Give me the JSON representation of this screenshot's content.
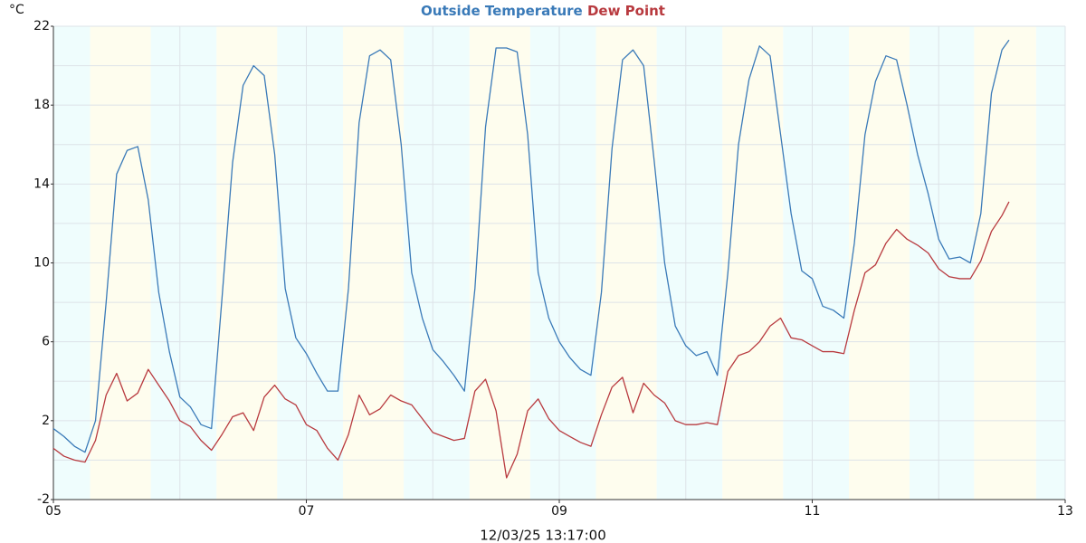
{
  "chart_data": {
    "type": "line",
    "y_unit": "°C",
    "footer": "12/03/25 13:17:00",
    "x": [
      5,
      5.083,
      5.167,
      5.25,
      5.333,
      5.417,
      5.5,
      5.583,
      5.667,
      5.75,
      5.833,
      5.917,
      6,
      6.083,
      6.167,
      6.25,
      6.333,
      6.417,
      6.5,
      6.583,
      6.667,
      6.75,
      6.833,
      6.917,
      7,
      7.083,
      7.167,
      7.25,
      7.333,
      7.417,
      7.5,
      7.583,
      7.667,
      7.75,
      7.833,
      7.917,
      8,
      8.083,
      8.167,
      8.25,
      8.333,
      8.417,
      8.5,
      8.583,
      8.667,
      8.75,
      8.833,
      8.917,
      9,
      9.083,
      9.167,
      9.25,
      9.333,
      9.417,
      9.5,
      9.583,
      9.667,
      9.75,
      9.833,
      9.917,
      10,
      10.083,
      10.167,
      10.25,
      10.333,
      10.417,
      10.5,
      10.583,
      10.667,
      10.75,
      10.833,
      10.917,
      11,
      11.083,
      11.167,
      11.25,
      11.333,
      11.417,
      11.5,
      11.583,
      11.667,
      11.75,
      11.833,
      11.917,
      12,
      12.083,
      12.167,
      12.25,
      12.333,
      12.417,
      12.5,
      12.556
    ],
    "series": [
      {
        "name": "Outside Temperature",
        "color": "#3a7ab8",
        "values": [
          1.6,
          1.2,
          0.7,
          0.4,
          2,
          8,
          14.5,
          15.7,
          15.9,
          13.2,
          8.5,
          5.5,
          3.2,
          2.7,
          1.8,
          1.6,
          8.2,
          15.1,
          19,
          20,
          19.5,
          15.5,
          8.7,
          6.2,
          5.4,
          4.4,
          3.5,
          3.5,
          8.7,
          17.1,
          20.5,
          20.8,
          20.3,
          16,
          9.5,
          7.2,
          5.6,
          5.0,
          4.3,
          3.5,
          8.7,
          16.9,
          20.9,
          20.9,
          20.7,
          16.5,
          9.5,
          7.2,
          6,
          5.2,
          4.6,
          4.3,
          8.5,
          15.8,
          20.3,
          20.8,
          20,
          15.2,
          10,
          6.8,
          5.8,
          5.3,
          5.5,
          4.3,
          9.5,
          16,
          19.3,
          21,
          20.5,
          16.5,
          12.5,
          9.6,
          9.2,
          7.8,
          7.6,
          7.2,
          11,
          16.5,
          19.2,
          20.5,
          20.3,
          18,
          15.5,
          13.5,
          11.2,
          10.2,
          10.3,
          10,
          12.5,
          18.6,
          20.8,
          21.3
        ]
      },
      {
        "name": "Dew Point",
        "color": "#b83a3f",
        "values": [
          0.6,
          0.2,
          0,
          -0.1,
          1.0,
          3.3,
          4.4,
          3.0,
          3.4,
          4.6,
          3.8,
          3.0,
          2.0,
          1.7,
          1.0,
          0.5,
          1.3,
          2.2,
          2.4,
          1.5,
          3.2,
          3.8,
          3.1,
          2.8,
          1.8,
          1.5,
          0.6,
          0,
          1.3,
          3.3,
          2.3,
          2.6,
          3.3,
          3.0,
          2.8,
          2.1,
          1.4,
          1.2,
          1.0,
          1.1,
          3.5,
          4.1,
          2.5,
          -0.9,
          0.3,
          2.5,
          3.1,
          2.1,
          1.5,
          1.2,
          0.9,
          0.7,
          2.3,
          3.7,
          4.2,
          2.4,
          3.9,
          3.3,
          2.9,
          2.0,
          1.8,
          1.8,
          1.9,
          1.8,
          4.5,
          5.3,
          5.5,
          6.0,
          6.8,
          7.2,
          6.2,
          6.1,
          5.8,
          5.5,
          5.5,
          5.4,
          7.6,
          9.5,
          9.9,
          11.0,
          11.7,
          11.2,
          10.9,
          10.5,
          9.7,
          9.3,
          9.2,
          9.2,
          10.1,
          11.6,
          12.4,
          13.1
        ]
      }
    ],
    "xlim": [
      5,
      13
    ],
    "xticks": [
      {
        "value": 5,
        "label": "05"
      },
      {
        "value": 7,
        "label": "07"
      },
      {
        "value": 9,
        "label": "09"
      },
      {
        "value": 11,
        "label": "11"
      },
      {
        "value": 13,
        "label": "13"
      }
    ],
    "x_grid": [
      5,
      6,
      7,
      8,
      9,
      10,
      11,
      12,
      13
    ],
    "ylim": [
      -2,
      22
    ],
    "yticks": [
      -2,
      2,
      6,
      10,
      14,
      18,
      22
    ],
    "y_grid": [
      -2,
      0,
      2,
      4,
      6,
      8,
      10,
      12,
      14,
      16,
      18,
      20,
      22
    ],
    "bands": [
      {
        "start": 5,
        "end": 5.29,
        "color": "#effdfd"
      },
      {
        "start": 5.29,
        "end": 5.77,
        "color": "#fefdee"
      },
      {
        "start": 5.77,
        "end": 6.29,
        "color": "#effdfd"
      },
      {
        "start": 6.29,
        "end": 6.77,
        "color": "#fefdee"
      },
      {
        "start": 6.77,
        "end": 7.29,
        "color": "#effdfd"
      },
      {
        "start": 7.29,
        "end": 7.77,
        "color": "#fefdee"
      },
      {
        "start": 7.77,
        "end": 8.29,
        "color": "#effdfd"
      },
      {
        "start": 8.29,
        "end": 8.77,
        "color": "#fefdee"
      },
      {
        "start": 8.77,
        "end": 9.29,
        "color": "#effdfd"
      },
      {
        "start": 9.29,
        "end": 9.77,
        "color": "#fefdee"
      },
      {
        "start": 9.77,
        "end": 10.29,
        "color": "#effdfd"
      },
      {
        "start": 10.29,
        "end": 10.77,
        "color": "#fefdee"
      },
      {
        "start": 10.77,
        "end": 11.29,
        "color": "#effdfd"
      },
      {
        "start": 11.29,
        "end": 11.77,
        "color": "#fefdee"
      },
      {
        "start": 11.77,
        "end": 12.28,
        "color": "#effdfd"
      },
      {
        "start": 12.28,
        "end": 12.77,
        "color": "#fefdee"
      },
      {
        "start": 12.77,
        "end": 13,
        "color": "#effdfd"
      }
    ],
    "grid": true
  }
}
